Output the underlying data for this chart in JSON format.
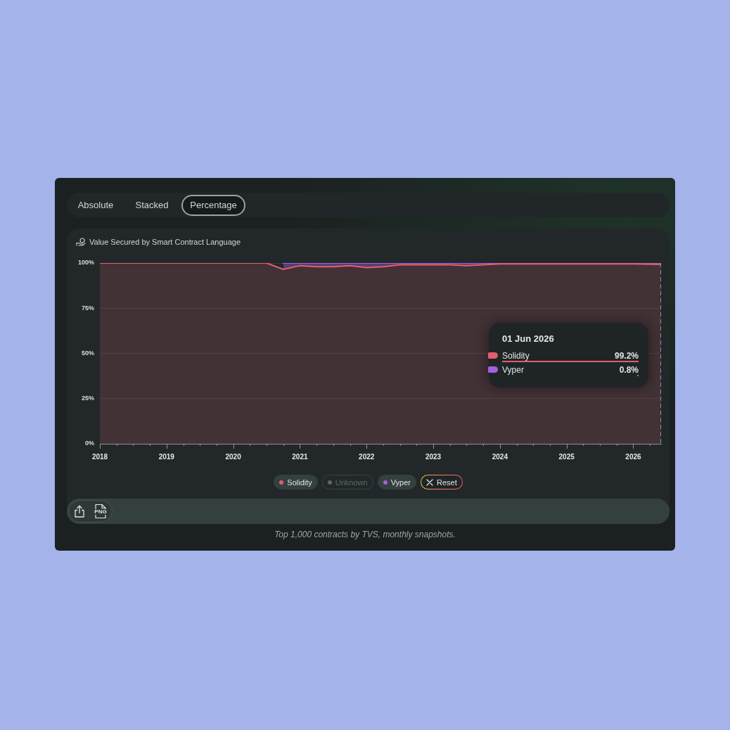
{
  "chart_data": {
    "type": "area",
    "title": "Value Secured by Smart Contract Language",
    "x": [
      "2018-01",
      "2020-07",
      "2020-10",
      "2021-01",
      "2021-04",
      "2021-07",
      "2021-10",
      "2022-01",
      "2022-04",
      "2022-07",
      "2022-10",
      "2023-01",
      "2023-04",
      "2023-07",
      "2023-10",
      "2024-01",
      "2024-07",
      "2025-01",
      "2025-07",
      "2026-01",
      "2026-06"
    ],
    "series": [
      {
        "name": "Solidity",
        "color": "#e35d6e",
        "values": [
          100,
          100,
          96.5,
          98.5,
          98,
          98,
          98.5,
          97.5,
          98,
          99,
          99,
          99,
          99,
          98.5,
          99,
          99.5,
          99.5,
          99.5,
          99.5,
          99.5,
          99.2
        ]
      },
      {
        "name": "Unknown",
        "color": "#5b6563",
        "values": [
          null,
          null,
          null,
          null,
          null,
          null,
          null,
          null,
          null,
          null,
          null,
          null,
          null,
          null,
          null,
          null,
          null,
          null,
          null,
          null,
          null
        ]
      },
      {
        "name": "Vyper",
        "color": "#a55ee0",
        "values": [
          null,
          null,
          3.5,
          1.5,
          2,
          2,
          1.5,
          2.5,
          2,
          1,
          1,
          1,
          1,
          1.5,
          1,
          0.5,
          0.5,
          0.5,
          0.5,
          0.5,
          0.8
        ]
      }
    ],
    "stacked": true,
    "xlim": [
      "2018-01",
      "2026-06"
    ],
    "xticks": [
      "2018",
      {
        "value": "2018-04",
        "label": null
      },
      {
        "value": "2018-07",
        "label": null
      },
      {
        "value": "2018-10",
        "label": null
      },
      "2019",
      {
        "value": "2019-04",
        "label": null
      },
      {
        "value": "2019-07",
        "label": null
      },
      {
        "value": "2019-10",
        "label": null
      },
      "2020",
      {
        "value": "2020-04",
        "label": null
      },
      {
        "value": "2020-07",
        "label": null
      },
      {
        "value": "2020-10",
        "label": null
      },
      "2021",
      {
        "value": "2021-04",
        "label": null
      },
      {
        "value": "2021-07",
        "label": null
      },
      {
        "value": "2021-10",
        "label": null
      },
      "2022",
      {
        "value": "2022-04",
        "label": null
      },
      {
        "value": "2022-07",
        "label": null
      },
      {
        "value": "2022-10",
        "label": null
      },
      "2023",
      {
        "value": "2023-04",
        "label": null
      },
      {
        "value": "2023-07",
        "label": null
      },
      {
        "value": "2023-10",
        "label": null
      },
      "2024",
      {
        "value": "2024-04",
        "label": null
      },
      {
        "value": "2024-07",
        "label": null
      },
      {
        "value": "2024-10",
        "label": null
      },
      "2025",
      {
        "value": "2025-04",
        "label": null
      },
      {
        "value": "2025-07",
        "label": null
      },
      {
        "value": "2025-10",
        "label": null
      },
      "2026",
      {
        "value": "2026-04",
        "label": null
      }
    ],
    "ylim": [
      0,
      100
    ],
    "yticks": [
      {
        "value": 0,
        "label": "0%"
      },
      {
        "value": 25,
        "label": "25%"
      },
      {
        "value": 50,
        "label": "50%"
      },
      {
        "value": 75,
        "label": "75%"
      },
      {
        "value": 100,
        "label": "100%"
      }
    ],
    "grid": "y",
    "legend": "bottom",
    "marker": "none",
    "ref_lines": [
      {
        "axis": "x",
        "value": "2026-06",
        "line_style": "dashed",
        "color": "#8c9694"
      }
    ],
    "annotations": [
      "Absolute",
      "Stacked",
      "Percentage",
      "01 Jun 2026",
      "99.2%",
      "0.8%",
      "Reset",
      "PNG",
      "Top 1,000 contracts by TVS, monthly snapshots."
    ]
  }
}
